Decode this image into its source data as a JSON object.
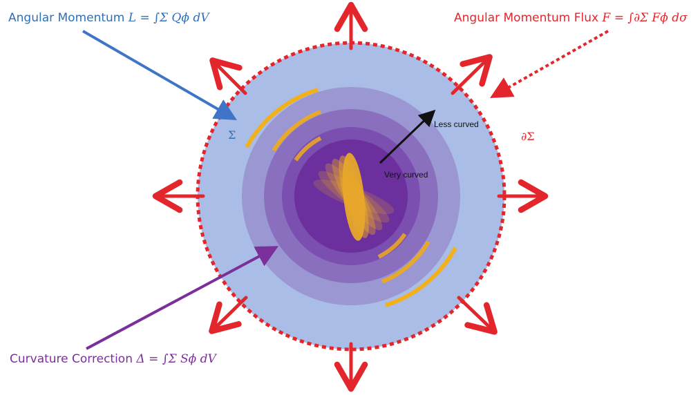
{
  "labels": {
    "angular_momentum": {
      "text": "Angular Momentum ",
      "formula": "L = ∫Σ Qϕ dV"
    },
    "angular_momentum_flux": {
      "text": "Angular Momentum Flux ",
      "formula": "F = ∫∂Σ Fϕ dσ"
    },
    "curvature_correction": {
      "text": "Curvature Correction ",
      "formula": "Δ = ∫Σ Sϕ dV"
    },
    "sigma": "Σ",
    "boundary": "∂Σ",
    "less_curved": "Less curved",
    "very_curved": "Very curved"
  },
  "colors": {
    "outer_disk": "#a9bde6",
    "boundary_dots": "#e3262b",
    "flux_arrows": "#e3262b",
    "inner_ring_1": "#9a97d2",
    "inner_ring_2": "#8a6fbf",
    "inner_ring_3": "#7a4fb0",
    "core": "#6b2f9e",
    "arcs": "#f2b11b",
    "arrow_blue": "#3f74c8",
    "arrow_purple": "#7a2f9a"
  }
}
